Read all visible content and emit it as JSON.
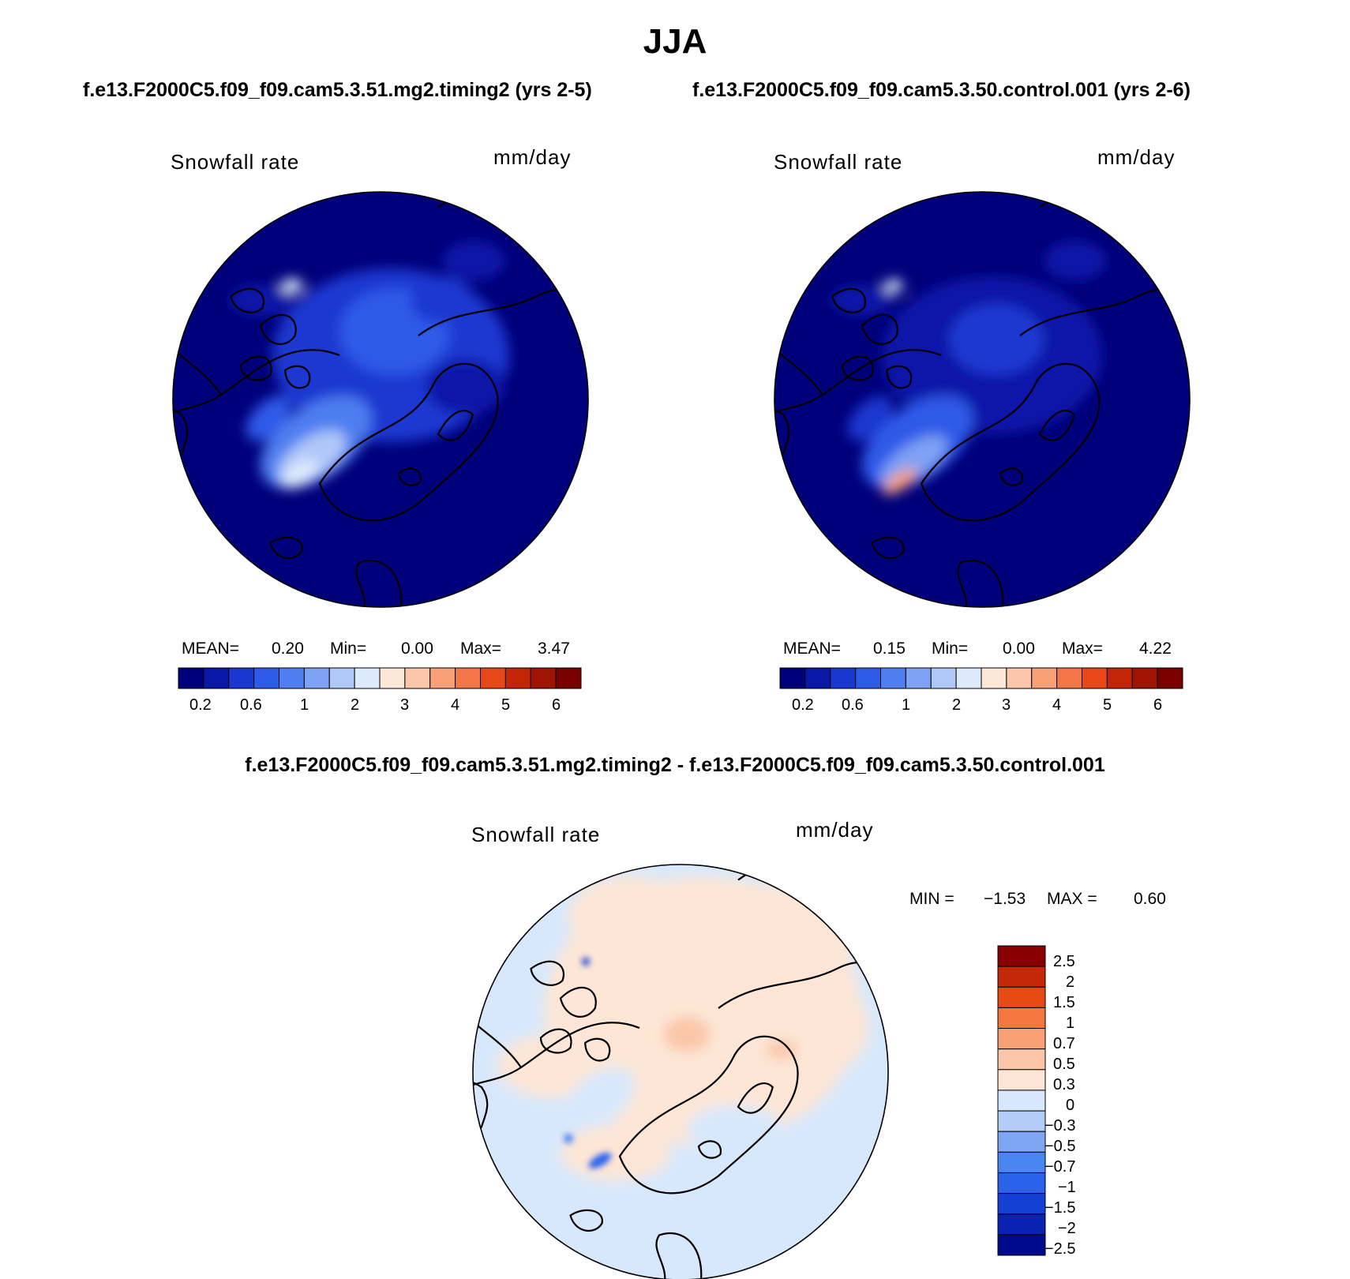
{
  "title": "JJA",
  "colors": {
    "h_scale": [
      "#00007a",
      "#0a18a8",
      "#1a38d0",
      "#2e5ae8",
      "#4e7ef0",
      "#7ea2f4",
      "#b0c8f8",
      "#dceafc",
      "#fde8d8",
      "#fbc6aa",
      "#f8a078",
      "#f27648",
      "#e84818",
      "#c42408",
      "#a01404",
      "#7a0000"
    ],
    "d_scale": [
      "#000a8c",
      "#0a22b4",
      "#1440d4",
      "#2a62ec",
      "#4a86f2",
      "#7ea6f4",
      "#b2cdf8",
      "#d8e8fc",
      "#fde6d6",
      "#fbc6a8",
      "#f8a076",
      "#f47640",
      "#e84a14",
      "#c42808",
      "#8a0000"
    ],
    "frame": "#000000"
  },
  "map_left": {
    "case_title": "f.e13.F2000C5.f09_f09.cam5.3.51.mg2.timing2 (yrs 2-5)",
    "variable": "Snowfall rate",
    "units": "mm/day",
    "mean_label": "MEAN=",
    "mean": "0.20",
    "min_label": "Min=",
    "min": "0.00",
    "max_label": "Max=",
    "max": "3.47",
    "ticks": [
      "0.2",
      "0.6",
      "1",
      "2",
      "3",
      "4",
      "5",
      "6"
    ]
  },
  "map_right": {
    "case_title": "f.e13.F2000C5.f09_f09.cam5.3.50.control.001 (yrs 2-6)",
    "variable": "Snowfall rate",
    "units": "mm/day",
    "mean_label": "MEAN=",
    "mean": "0.15",
    "min_label": "Min=",
    "min": "0.00",
    "max_label": "Max=",
    "max": "4.22",
    "ticks": [
      "0.2",
      "0.6",
      "1",
      "2",
      "3",
      "4",
      "5",
      "6"
    ]
  },
  "map_diff": {
    "title": "f.e13.F2000C5.f09_f09.cam5.3.51.mg2.timing2 - f.e13.F2000C5.f09_f09.cam5.3.50.control.001",
    "variable": "Snowfall rate",
    "units": "mm/day",
    "min_label": "MIN =",
    "min": "−1.53",
    "max_label": "MAX =",
    "max": "0.60",
    "ticks": [
      "2.5",
      "2",
      "1.5",
      "1",
      "0.7",
      "0.5",
      "0.3",
      "0",
      "−0.3",
      "−0.5",
      "−0.7",
      "−1",
      "−1.5",
      "−2",
      "−2.5"
    ]
  }
}
